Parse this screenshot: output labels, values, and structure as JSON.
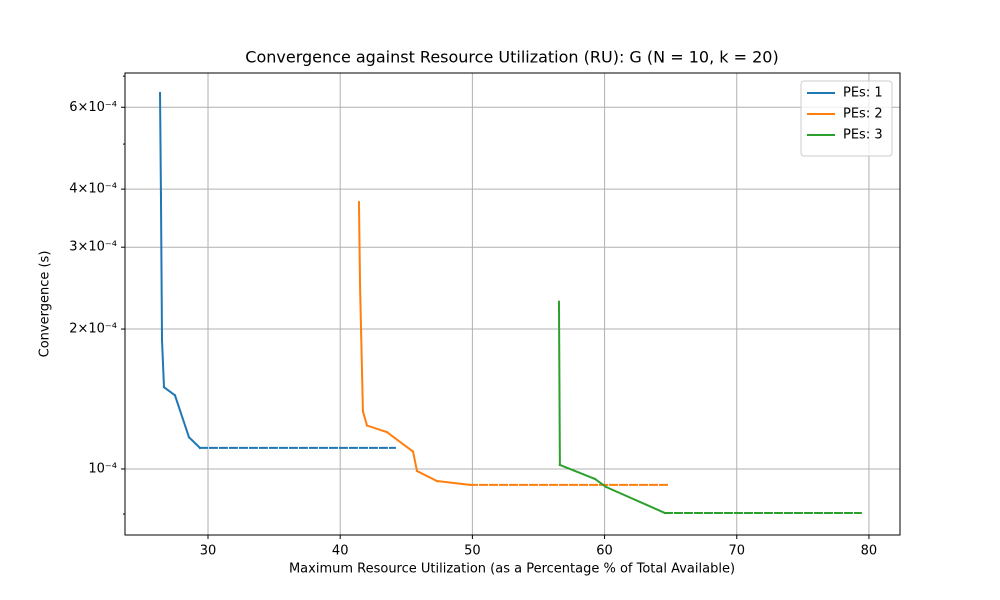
{
  "chart_data": {
    "type": "line",
    "title": "Convergence against Resource Utilization (RU): G (N = 10, k = 20)",
    "x_label": "Maximum Resource Utilization (as a Percentage % of Total Available)",
    "y_label": "Convergence (s)",
    "ylog": true,
    "grid": true,
    "legend": "upper right",
    "xlim": [
      23.72,
      82.35
    ],
    "xticks": [
      30,
      40,
      50,
      60,
      70,
      80
    ],
    "ylim": [
      7.21e-05,
      0.000711
    ],
    "yticks": [
      {
        "value": 0.0001,
        "label": "10⁻⁴"
      },
      {
        "value": 0.0002,
        "label": "2×10⁻⁴"
      },
      {
        "value": 0.0003,
        "label": "3×10⁻⁴"
      },
      {
        "value": 0.0004,
        "label": "4×10⁻⁴"
      },
      {
        "value": 0.0006,
        "label": "6×10⁻⁴"
      }
    ],
    "yminorticks": [
      8e-05,
      0.0005,
      0.0007
    ],
    "series": [
      {
        "name": "PEs: 1",
        "color": "#1f77b4",
        "dash_start": 6,
        "x": [
          26.37,
          26.44,
          26.52,
          26.67,
          27.5,
          28.56,
          29.39,
          44.14
        ],
        "values": [
          0.000644,
          0.000388,
          0.000189,
          0.00015,
          0.000144,
          0.000117,
          0.000111,
          0.000111
        ]
      },
      {
        "name": "PEs: 2",
        "color": "#ff7f0e",
        "dash_start": 8,
        "x": [
          41.42,
          41.5,
          41.72,
          42.03,
          43.54,
          45.51,
          45.81,
          47.32,
          49.82,
          64.72
        ],
        "values": [
          0.000375,
          0.000249,
          0.000133,
          0.000124,
          0.00012,
          0.000109,
          9.9e-05,
          9.42e-05,
          9.24e-05,
          9.24e-05
        ]
      },
      {
        "name": "PEs: 3",
        "color": "#2ca02c",
        "dash_start": 4,
        "x": [
          56.55,
          56.62,
          59.27,
          60.1,
          64.57,
          79.39
        ],
        "values": [
          0.000229,
          0.000102,
          9.52e-05,
          9.15e-05,
          8.04e-05,
          8.04e-05
        ]
      }
    ]
  }
}
